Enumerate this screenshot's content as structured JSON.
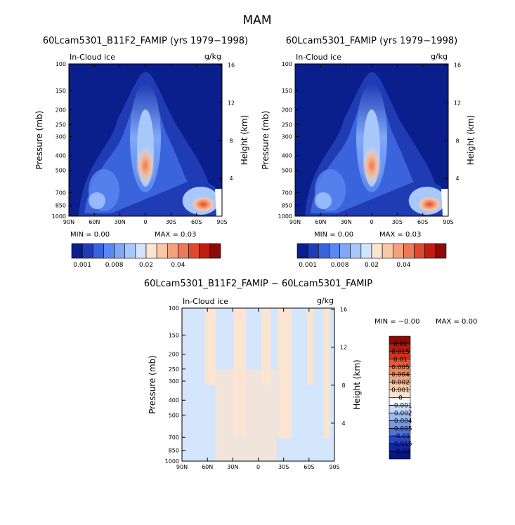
{
  "figure": {
    "title": "MAM"
  },
  "chart_data": [
    {
      "type": "heatmap",
      "title": "60Lcam5301_B11F2_FAMIP (yrs 1979−1998)",
      "left_label": "In-Cloud ice",
      "right_label": "g/kg",
      "xlabel": "",
      "ylabel": "Pressure (mb)",
      "ylabel_right": "Height (km)",
      "x_ticks": [
        "90N",
        "60N",
        "30N",
        "0",
        "30S",
        "60S",
        "90S"
      ],
      "x_values": [
        90,
        60,
        30,
        0,
        -30,
        -60,
        -90
      ],
      "y_ticks": [
        "100",
        "150",
        "200",
        "250",
        "300",
        "400",
        "500",
        "700",
        "850",
        "1000"
      ],
      "y_values": [
        100,
        150,
        200,
        250,
        300,
        400,
        500,
        700,
        850,
        1000
      ],
      "y_scale": "log",
      "y_right_ticks": [
        "16",
        "12",
        "8",
        "4"
      ],
      "y_right_values": [
        16,
        12,
        8,
        4
      ],
      "min_label": "MIN =    0.00",
      "max_label": "MAX =    0.03",
      "colorbar_labels": [
        "0.001",
        "0.008",
        "0.02",
        "0.04"
      ],
      "colorbar_colors": [
        "#0a1e8c",
        "#1f3cb4",
        "#3a64dc",
        "#5a87f0",
        "#7fa8f8",
        "#a8c8fc",
        "#d2e4fc",
        "#fbe4d0",
        "#f8c8a8",
        "#f4a27c",
        "#ec7a56",
        "#de4a30",
        "#c01c10",
        "#8c0a08"
      ]
    },
    {
      "type": "heatmap",
      "title": "60Lcam5301_FAMIP (yrs 1979−1998)",
      "left_label": "In-Cloud ice",
      "right_label": "g/kg",
      "xlabel": "",
      "ylabel": "Pressure (mb)",
      "ylabel_right": "Height (km)",
      "x_ticks": [
        "90N",
        "60N",
        "30N",
        "0",
        "30S",
        "60S",
        "90S"
      ],
      "x_values": [
        90,
        60,
        30,
        0,
        -30,
        -60,
        -90
      ],
      "y_ticks": [
        "100",
        "150",
        "200",
        "250",
        "300",
        "400",
        "500",
        "700",
        "850",
        "1000"
      ],
      "y_values": [
        100,
        150,
        200,
        250,
        300,
        400,
        500,
        700,
        850,
        1000
      ],
      "y_scale": "log",
      "y_right_ticks": [
        "16",
        "12",
        "8",
        "4"
      ],
      "y_right_values": [
        16,
        12,
        8,
        4
      ],
      "min_label": "MIN =    0.00",
      "max_label": "MAX =    0.03",
      "colorbar_labels": [
        "0.001",
        "0.008",
        "0.02",
        "0.04"
      ],
      "colorbar_colors": [
        "#0a1e8c",
        "#1f3cb4",
        "#3a64dc",
        "#5a87f0",
        "#7fa8f8",
        "#a8c8fc",
        "#d2e4fc",
        "#fbe4d0",
        "#f8c8a8",
        "#f4a27c",
        "#ec7a56",
        "#de4a30",
        "#c01c10",
        "#8c0a08"
      ]
    },
    {
      "type": "heatmap",
      "title": "60Lcam5301_B11F2_FAMIP − 60Lcam5301_FAMIP",
      "left_label": "In-Cloud ice",
      "right_label": "g/kg",
      "xlabel": "",
      "ylabel": "Pressure (mb)",
      "ylabel_right": "Height (km)",
      "x_ticks": [
        "90N",
        "60N",
        "30N",
        "0",
        "30S",
        "60S",
        "90S"
      ],
      "x_values": [
        90,
        60,
        30,
        0,
        -30,
        -60,
        -90
      ],
      "y_ticks": [
        "100",
        "150",
        "200",
        "250",
        "300",
        "400",
        "500",
        "700",
        "850",
        "1000"
      ],
      "y_values": [
        100,
        150,
        200,
        250,
        300,
        400,
        500,
        700,
        850,
        1000
      ],
      "y_scale": "log",
      "y_right_ticks": [
        "16",
        "12",
        "8",
        "4"
      ],
      "y_right_values": [
        16,
        12,
        8,
        4
      ],
      "min_label": "MIN =   −0.00",
      "max_label": "MAX =    0.00",
      "colorbar_labels": [
        "0.02",
        "0.015",
        "0.01",
        "0.005",
        "0.004",
        "0.002",
        "0.001",
        "0",
        "−0.001",
        "−0.002",
        "−0.004",
        "−0.005",
        "−0.01",
        "−0.015",
        "−0.02"
      ],
      "colorbar_colors": [
        "#8c0a08",
        "#b01c10",
        "#d0341c",
        "#ea5a30",
        "#f2844e",
        "#f6a676",
        "#fac8a6",
        "#fbe2cc",
        "#f4f8ff",
        "#c6dcfa",
        "#9cbcf4",
        "#7698ea",
        "#4c70de",
        "#2846c4",
        "#1226a0",
        "#0a1580"
      ]
    }
  ]
}
